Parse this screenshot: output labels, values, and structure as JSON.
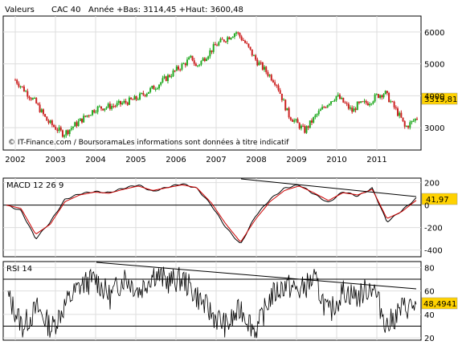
{
  "header": {
    "valeurs_label": "Valeurs",
    "index_name": "CAC 40",
    "summary": "Année +Bas: 3114,45 +Haut: 3600,48"
  },
  "watermark": "© IT-Finance.com / BoursoramaLes informations sont données à titre indicatif",
  "colors": {
    "up_candle": "#22aa22",
    "down_candle": "#cc2222",
    "macd_line": "#000000",
    "signal_line": "#cc0000",
    "rsi_line": "#000000",
    "last_value_badge": "#ffd200",
    "grid": "#dddddd",
    "trendline": "#000000"
  },
  "chart_data": [
    {
      "type": "candlestick",
      "panel": "price",
      "series_name": "CAC 40",
      "x_ticks": [
        "2002",
        "2003",
        "2004",
        "2005",
        "2006",
        "2007",
        "2008",
        "2009",
        "2010",
        "2011"
      ],
      "y_ticks": [
        "6000",
        "5000",
        "4000",
        "3000"
      ],
      "ylim": [
        2300,
        6500
      ],
      "last_value": "3319,81",
      "x": [
        2002.0,
        2002.5,
        2002.8,
        2003.2,
        2003.5,
        2004.0,
        2004.5,
        2005.0,
        2005.5,
        2006.0,
        2006.4,
        2006.5,
        2007.0,
        2007.5,
        2007.7,
        2008.0,
        2008.5,
        2008.8,
        2009.2,
        2009.5,
        2009.8,
        2010.0,
        2010.4,
        2010.5,
        2010.8,
        2011.0,
        2011.2,
        2011.6,
        2011.7,
        2011.9,
        2012.0
      ],
      "close": [
        4500,
        3800,
        3200,
        2800,
        3100,
        3600,
        3700,
        3900,
        4300,
        4800,
        5200,
        4900,
        5600,
        6000,
        5700,
        5100,
        4400,
        3400,
        2900,
        3400,
        3800,
        4000,
        3500,
        3700,
        3800,
        4000,
        4100,
        3300,
        3000,
        3200,
        3320
      ],
      "markers": [
        4500,
        3200,
        2800,
        5600,
        6000,
        2900,
        4000,
        4100,
        3000,
        3320
      ]
    },
    {
      "type": "line",
      "panel": "macd",
      "label": "MACD 12 26 9",
      "y_ticks": [
        "200",
        "0",
        "-200",
        "-400"
      ],
      "ylim": [
        -460,
        240
      ],
      "last_value": "41,97",
      "series": [
        {
          "name": "MACD",
          "values": [
            0,
            -50,
            -300,
            -150,
            50,
            100,
            120,
            110,
            150,
            180,
            120,
            160,
            190,
            150,
            0,
            -200,
            -350,
            -100,
            50,
            150,
            180,
            100,
            20,
            120,
            80,
            150,
            -150,
            -50,
            60
          ]
        },
        {
          "name": "Signal",
          "values": [
            0,
            -30,
            -260,
            -170,
            30,
            90,
            115,
            105,
            140,
            170,
            130,
            155,
            180,
            155,
            20,
            -170,
            -330,
            -130,
            30,
            130,
            170,
            110,
            40,
            110,
            90,
            140,
            -120,
            -60,
            42
          ]
        }
      ],
      "trendline_label": ""
    },
    {
      "type": "line",
      "panel": "rsi",
      "label": "RSI 14",
      "y_ticks": [
        "80",
        "60",
        "40",
        "20"
      ],
      "ylim": [
        18,
        85
      ],
      "last_value": "48,4941",
      "reference_lines": [
        70,
        30
      ],
      "series": [
        {
          "name": "RSI",
          "values": [
            55,
            30,
            45,
            28,
            50,
            65,
            70,
            55,
            72,
            60,
            75,
            68,
            70,
            55,
            40,
            30,
            45,
            25,
            55,
            65,
            60,
            70,
            40,
            60,
            55,
            65,
            30,
            45,
            48
          ]
        }
      ]
    }
  ]
}
